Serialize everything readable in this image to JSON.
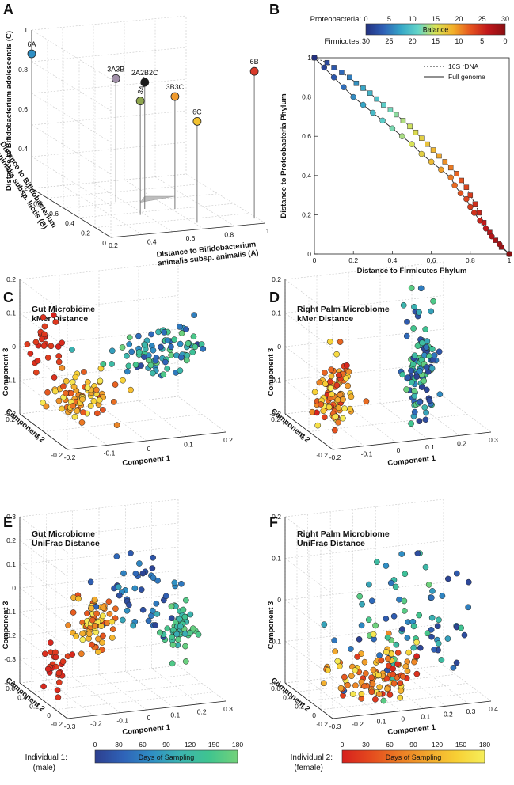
{
  "colors": {
    "individual1": [
      "#2d3f8f",
      "#2f63b8",
      "#2f8fc4",
      "#3cb4b0",
      "#3fc48f",
      "#73d27a"
    ],
    "individual2": [
      "#d6201e",
      "#e44a1e",
      "#ec7c24",
      "#f2a72d",
      "#f7cf34",
      "#f6ee5a"
    ],
    "balance": [
      "#23307f",
      "#2e5fb6",
      "#36a6c7",
      "#63d5c8",
      "#d8e356",
      "#f2b02a",
      "#e5541f",
      "#c0171b",
      "#8a0f12"
    ]
  },
  "panel_labels": {
    "a": "A",
    "b": "B",
    "c": "C",
    "d": "D",
    "e": "E",
    "f": "F"
  },
  "chart_data": [
    {
      "panel": "A",
      "type": "scatter",
      "projection": "3d",
      "xlabel": "Distance to Bifidobacterium animalis subsp. animalis (A)",
      "ylabel": "Distance to Bifidobacterium animalis subsp. lactis (B)",
      "zlabel": "Distance to Bifidobacterium adolescentis (C)",
      "xlim": [
        0,
        1
      ],
      "ylim": [
        0,
        1
      ],
      "zlim": [
        0,
        1
      ],
      "x_ticks": [
        "0.2",
        "0.4",
        "0.6",
        "0.8",
        "1"
      ],
      "y_ticks": [
        "0",
        "0.2",
        "0.4",
        "0.6",
        "0.8",
        "1"
      ],
      "z_ticks": [
        "0.2",
        "0.4",
        "0.6",
        "0.8",
        "1"
      ],
      "points": [
        {
          "label": "6A",
          "x": 0.0,
          "y": 1.0,
          "z": 0.85,
          "color": "#2f8fc4"
        },
        {
          "label": "3A3B",
          "x": 0.35,
          "y": 0.62,
          "z": 0.78,
          "color": "#a08fa8"
        },
        {
          "label": "3A3C",
          "x": 0.37,
          "y": 0.35,
          "z": 0.72,
          "color": "#8fa64f"
        },
        {
          "label": "2A2B2C",
          "x": 0.45,
          "y": 0.45,
          "z": 0.8,
          "color": "#1a1a1a"
        },
        {
          "label": "3B3C",
          "x": 0.62,
          "y": 0.4,
          "z": 0.71,
          "color": "#ef9a2e"
        },
        {
          "label": "6B",
          "x": 0.98,
          "y": 0.1,
          "z": 0.93,
          "color": "#d93a2a"
        },
        {
          "label": "6C",
          "x": 0.62,
          "y": 0.12,
          "z": 0.64,
          "color": "#f2c230"
        }
      ]
    },
    {
      "panel": "B",
      "type": "line",
      "xlabel": "Distance to Firmicutes Phylum",
      "ylabel": "Distance to Proteobacteria Phylum",
      "xlim": [
        0,
        1
      ],
      "ylim": [
        0,
        1
      ],
      "x_ticks": [
        "0",
        "0.2",
        "0.4",
        "0.6",
        "0.8",
        "1"
      ],
      "y_ticks": [
        "0",
        "0.2",
        "0.4",
        "0.6",
        "0.8",
        "1"
      ],
      "legend": [
        "16S rDNA",
        "Full genome"
      ],
      "colorbar": {
        "top_label": "Proteobacteria:",
        "bottom_label": "Firmicutes:",
        "center_label": "Balance",
        "top_ticks": [
          "0",
          "5",
          "10",
          "15",
          "20",
          "25",
          "30"
        ],
        "bottom_ticks": [
          "30",
          "25",
          "20",
          "15",
          "10",
          "5",
          "0"
        ]
      },
      "series": [
        {
          "name": "16S rDNA",
          "x": [
            0,
            0.065,
            0.1,
            0.14,
            0.18,
            0.215,
            0.25,
            0.285,
            0.32,
            0.355,
            0.39,
            0.42,
            0.455,
            0.49,
            0.52,
            0.55,
            0.58,
            0.61,
            0.64,
            0.67,
            0.7,
            0.73,
            0.755,
            0.78,
            0.8,
            0.825,
            0.845,
            0.87,
            0.9,
            0.93,
            0.96,
            1.0
          ],
          "y": [
            1.0,
            0.975,
            0.95,
            0.925,
            0.9,
            0.87,
            0.845,
            0.82,
            0.79,
            0.76,
            0.735,
            0.71,
            0.68,
            0.65,
            0.62,
            0.59,
            0.56,
            0.53,
            0.5,
            0.47,
            0.44,
            0.41,
            0.375,
            0.34,
            0.3,
            0.255,
            0.21,
            0.16,
            0.11,
            0.07,
            0.035,
            0.0
          ]
        },
        {
          "name": "Full genome",
          "x": [
            0,
            0.05,
            0.1,
            0.15,
            0.2,
            0.25,
            0.3,
            0.35,
            0.4,
            0.45,
            0.5,
            0.55,
            0.6,
            0.65,
            0.7,
            0.72,
            0.75,
            0.78,
            0.8,
            0.82,
            0.85,
            0.88,
            0.91,
            0.95,
            1.0
          ],
          "y": [
            1.0,
            0.95,
            0.9,
            0.85,
            0.8,
            0.76,
            0.72,
            0.68,
            0.64,
            0.6,
            0.56,
            0.51,
            0.47,
            0.43,
            0.39,
            0.35,
            0.31,
            0.28,
            0.24,
            0.21,
            0.17,
            0.13,
            0.09,
            0.05,
            0.0
          ]
        }
      ]
    },
    {
      "panel": "C",
      "type": "scatter",
      "projection": "3d",
      "title": "Gut Microbiome\nkMer Distance",
      "xlabel": "Component 1",
      "ylabel": "Component 2",
      "zlabel": "Component 3",
      "x_ticks": [
        "-0.2",
        "-0.1",
        "0",
        "0.1",
        "0.2"
      ],
      "y_ticks": [
        "-0.2",
        "0",
        "0.2"
      ],
      "z_ticks": [
        "-0.2",
        "-0.1",
        "0",
        "0.1",
        "0.2"
      ],
      "clusters": [
        {
          "individual": 2,
          "days": [
            0,
            30
          ],
          "center": [
            -0.15,
            0.15,
            0.02
          ],
          "spread": [
            0.03,
            0.03,
            0.04
          ],
          "n": 28
        },
        {
          "individual": 2,
          "days": [
            30,
            180
          ],
          "center": [
            -0.09,
            0.05,
            -0.13
          ],
          "spread": [
            0.04,
            0.03,
            0.04
          ],
          "n": 80
        },
        {
          "individual": 1,
          "days": [
            0,
            180
          ],
          "center": [
            0.1,
            0.0,
            0.0
          ],
          "spread": [
            0.07,
            0.02,
            0.03
          ],
          "n": 95
        }
      ]
    },
    {
      "panel": "D",
      "type": "scatter",
      "projection": "3d",
      "title": "Right Palm Microbiome\nkMer Distance",
      "xlabel": "Component 1",
      "ylabel": "Component 2",
      "zlabel": "Component 3",
      "x_ticks": [
        "-0.2",
        "-0.1",
        "0",
        "0.1",
        "0.2",
        "0.3"
      ],
      "y_ticks": [
        "-0.2",
        "0",
        "0.2"
      ],
      "z_ticks": [
        "-0.2",
        "-0.1",
        "0",
        "0.1",
        "0.2"
      ],
      "clusters": [
        {
          "individual": 2,
          "days": [
            0,
            180
          ],
          "center": [
            -0.12,
            0.0,
            -0.1
          ],
          "spread": [
            0.03,
            0.02,
            0.05
          ],
          "n": 90
        },
        {
          "individual": 1,
          "days": [
            0,
            180
          ],
          "center": [
            0.15,
            0.0,
            -0.05
          ],
          "spread": [
            0.03,
            0.02,
            0.09
          ],
          "n": 110
        }
      ]
    },
    {
      "panel": "E",
      "type": "scatter",
      "projection": "3d",
      "title": "Gut Microbiome\nUniFrac Distance",
      "xlabel": "Component 1",
      "ylabel": "Component 2",
      "zlabel": "Component 3",
      "x_ticks": [
        "-0.3",
        "-0.2",
        "-0.1",
        "0",
        "0.1",
        "0.2",
        "0.3"
      ],
      "y_ticks": [
        "-0.2",
        "0",
        "0.2",
        "0.4",
        "0.6"
      ],
      "z_ticks": [
        "-0.4",
        "-0.3",
        "-0.2",
        "-0.1",
        "0",
        "0.1",
        "0.2",
        "0.3"
      ],
      "clusters": [
        {
          "individual": 2,
          "days": [
            0,
            30
          ],
          "center": [
            -0.25,
            0.2,
            -0.25
          ],
          "spread": [
            0.03,
            0.03,
            0.04
          ],
          "n": 25
        },
        {
          "individual": 2,
          "days": [
            30,
            180
          ],
          "center": [
            -0.12,
            0.15,
            -0.08
          ],
          "spread": [
            0.04,
            0.03,
            0.06
          ],
          "n": 70
        },
        {
          "individual": 1,
          "days": [
            0,
            100
          ],
          "center": [
            0.05,
            0.1,
            0.02
          ],
          "spread": [
            0.08,
            0.05,
            0.12
          ],
          "n": 45
        },
        {
          "individual": 1,
          "days": [
            100,
            180
          ],
          "center": [
            0.18,
            0.05,
            -0.12
          ],
          "spread": [
            0.03,
            0.03,
            0.05
          ],
          "n": 60
        }
      ]
    },
    {
      "panel": "F",
      "type": "scatter",
      "projection": "3d",
      "title": "Right Palm Microbiome\nUniFrac Distance",
      "xlabel": "Component 1",
      "ylabel": "Component 2",
      "zlabel": "Component 3",
      "x_ticks": [
        "-0.3",
        "-0.2",
        "-0.1",
        "0",
        "0.1",
        "0.2",
        "0.3",
        "0.4"
      ],
      "y_ticks": [
        "-0.2",
        "0",
        "0.2",
        "0.4",
        "0.6"
      ],
      "z_ticks": [
        "-0.2",
        "-0.1",
        "0",
        "0.1",
        "0.2"
      ],
      "clusters": [
        {
          "individual": 2,
          "days": [
            0,
            180
          ],
          "center": [
            -0.05,
            0.0,
            -0.14
          ],
          "spread": [
            0.1,
            0.04,
            0.04
          ],
          "n": 110
        },
        {
          "individual": 1,
          "days": [
            0,
            180
          ],
          "center": [
            0.1,
            0.05,
            -0.02
          ],
          "spread": [
            0.15,
            0.05,
            0.08
          ],
          "n": 80
        }
      ]
    }
  ],
  "legends": {
    "individual1": {
      "title": "Individual 1:",
      "subtitle": "(male)",
      "bar_label": "Days of Sampling",
      "ticks": [
        "0",
        "30",
        "60",
        "90",
        "120",
        "150",
        "180"
      ]
    },
    "individual2": {
      "title": "Individual 2:",
      "subtitle": "(female)",
      "bar_label": "Days of Sampling",
      "ticks": [
        "0",
        "30",
        "60",
        "90",
        "120",
        "150",
        "180"
      ]
    }
  }
}
